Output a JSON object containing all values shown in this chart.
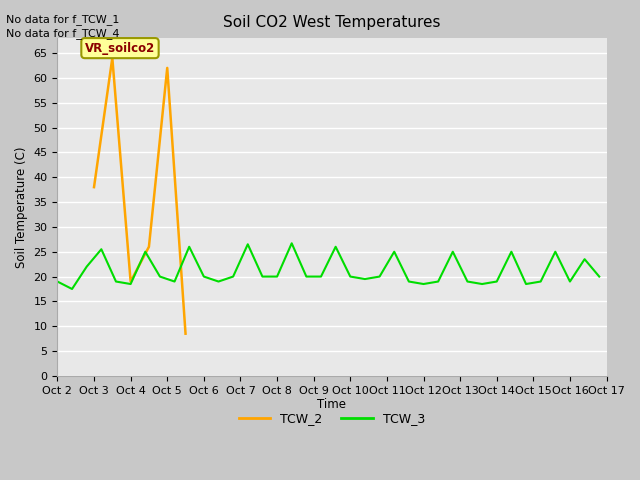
{
  "title": "Soil CO2 West Temperatures",
  "ylabel": "Soil Temperature (C)",
  "xlabel": "Time",
  "no_data_text": [
    "No data for f_TCW_1",
    "No data for f_TCW_4"
  ],
  "annotation_text": "VR_soilco2",
  "ylim": [
    0,
    68
  ],
  "yticks": [
    0,
    5,
    10,
    15,
    20,
    25,
    30,
    35,
    40,
    45,
    50,
    55,
    60,
    65
  ],
  "xlim": [
    0,
    15
  ],
  "xtick_positions": [
    0,
    1,
    2,
    3,
    4,
    5,
    6,
    7,
    8,
    9,
    10,
    11,
    12,
    13,
    14,
    15
  ],
  "xtick_labels": [
    "Oct 2",
    "Oct 3",
    "Oct 4",
    "Oct 5",
    "Oct 6",
    "Oct 7",
    "Oct 8",
    "Oct 9",
    "Oct 10",
    "Oct 11",
    "Oct 12",
    "Oct 13",
    "Oct 14",
    "Oct 15",
    "Oct 16",
    "Oct 17"
  ],
  "fig_facecolor": "#c8c8c8",
  "plot_bg_color": "#e8e8e8",
  "tcw2_color": "#FFA500",
  "tcw3_color": "#00DD00",
  "tcw2_x": [
    1,
    1.5,
    2,
    2.5,
    3,
    3.5
  ],
  "tcw2_y": [
    38,
    64,
    19,
    26,
    62,
    8.5
  ],
  "tcw3_x": [
    0,
    0.4,
    0.8,
    1.2,
    1.6,
    2.0,
    2.4,
    2.8,
    3.2,
    3.6,
    4.0,
    4.4,
    4.8,
    5.2,
    5.6,
    6.0,
    6.4,
    6.8,
    7.2,
    7.6,
    8.0,
    8.4,
    8.8,
    9.2,
    9.6,
    10.0,
    10.4,
    10.8,
    11.2,
    11.6,
    12.0,
    12.4,
    12.8,
    13.2,
    13.6,
    14.0,
    14.4,
    14.8
  ],
  "tcw3_y": [
    19,
    17.5,
    22,
    25.5,
    19,
    18.5,
    25,
    20,
    19,
    26,
    20,
    19,
    20,
    26.5,
    20,
    20,
    26.7,
    20,
    20,
    26,
    20,
    19.5,
    20,
    25,
    19,
    18.5,
    19,
    25,
    19,
    18.5,
    19,
    25,
    18.5,
    19,
    25,
    19,
    23.5,
    20
  ],
  "legend_entries": [
    "TCW_2",
    "TCW_3"
  ],
  "legend_colors": [
    "#FFA500",
    "#00DD00"
  ]
}
